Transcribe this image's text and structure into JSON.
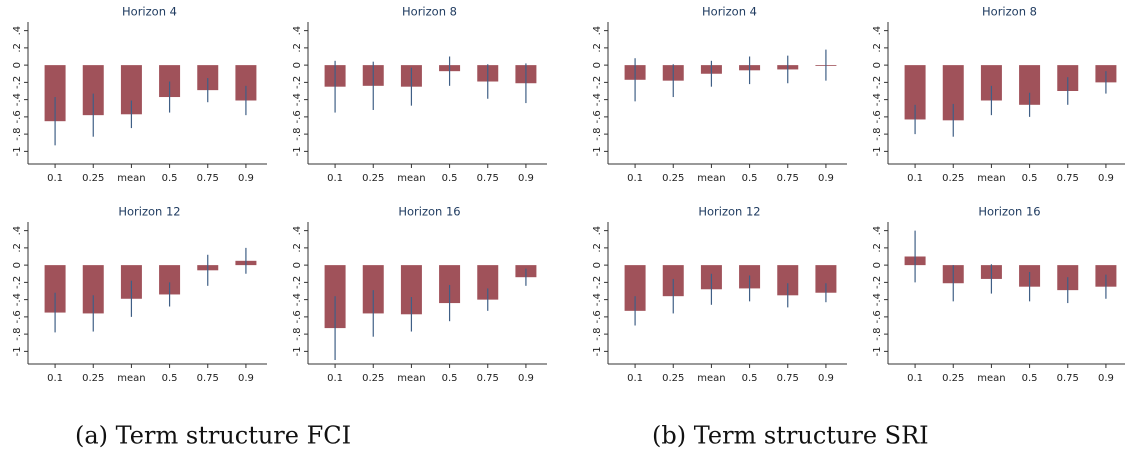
{
  "chart_data": [
    {
      "type": "bar",
      "title": "Horizon 4",
      "categories": [
        "0.1",
        "0.25",
        "mean",
        "0.5",
        "0.75",
        "0.9"
      ],
      "values": [
        -0.65,
        -0.58,
        -0.57,
        -0.37,
        -0.29,
        -0.41
      ],
      "errors": [
        0.28,
        0.25,
        0.16,
        0.18,
        0.14,
        0.17
      ],
      "color": "#a0525a",
      "error_color": "#3f5f86",
      "ylim": [
        -1.1,
        0.5
      ],
      "yticks": [
        {
          "value": 0.4,
          "label": ".4"
        },
        {
          "value": 0.2,
          "label": ".2"
        },
        0,
        {
          "value": -0.2,
          "label": "-.2"
        },
        {
          "value": -0.4,
          "label": "-.4"
        },
        {
          "value": -0.6,
          "label": "-.6"
        },
        {
          "value": -0.8,
          "label": "-.8"
        },
        -1
      ]
    },
    {
      "type": "bar",
      "title": "Horizon 8",
      "categories": [
        "0.1",
        "0.25",
        "mean",
        "0.5",
        "0.75",
        "0.9"
      ],
      "values": [
        -0.25,
        -0.24,
        -0.25,
        -0.07,
        -0.19,
        -0.21
      ],
      "errors": [
        0.3,
        0.28,
        0.22,
        0.17,
        0.2,
        0.23
      ],
      "color": "#a0525a",
      "error_color": "#3f5f86",
      "ylim": [
        -1.1,
        0.5
      ],
      "yticks": [
        {
          "value": 0.4,
          "label": ".4"
        },
        {
          "value": 0.2,
          "label": ".2"
        },
        0,
        {
          "value": -0.2,
          "label": "-.2"
        },
        {
          "value": -0.4,
          "label": "-.4"
        },
        {
          "value": -0.6,
          "label": "-.6"
        },
        {
          "value": -0.8,
          "label": "-.8"
        },
        -1
      ]
    },
    {
      "type": "bar",
      "title": "Horizon 4",
      "categories": [
        "0.1",
        "0.25",
        "mean",
        "0.5",
        "0.75",
        "0.9"
      ],
      "values": [
        -0.17,
        -0.18,
        -0.1,
        -0.06,
        -0.05,
        0
      ],
      "errors": [
        0.25,
        0.19,
        0.15,
        0.16,
        0.16,
        0.18
      ],
      "color": "#a0525a",
      "error_color": "#3f5f86",
      "ylim": [
        -1.1,
        0.5
      ],
      "yticks": [
        {
          "value": 0.4,
          "label": ".4"
        },
        {
          "value": 0.2,
          "label": ".2"
        },
        0,
        {
          "value": -0.2,
          "label": "-.2"
        },
        {
          "value": -0.4,
          "label": "-.4"
        },
        {
          "value": -0.6,
          "label": "-.6"
        },
        {
          "value": -0.8,
          "label": "-.8"
        },
        -1
      ]
    },
    {
      "type": "bar",
      "title": "Horizon 8",
      "categories": [
        "0.1",
        "0.25",
        "mean",
        "0.5",
        "0.75",
        "0.9"
      ],
      "values": [
        -0.63,
        -0.64,
        -0.41,
        -0.46,
        -0.3,
        -0.2
      ],
      "errors": [
        0.17,
        0.19,
        0.17,
        0.14,
        0.16,
        0.13
      ],
      "color": "#a0525a",
      "error_color": "#3f5f86",
      "ylim": [
        -1.1,
        0.5
      ],
      "yticks": [
        {
          "value": 0.4,
          "label": ".4"
        },
        {
          "value": 0.2,
          "label": ".2"
        },
        0,
        {
          "value": -0.2,
          "label": "-.2"
        },
        {
          "value": -0.4,
          "label": "-.4"
        },
        {
          "value": -0.6,
          "label": "-.6"
        },
        {
          "value": -0.8,
          "label": "-.8"
        },
        -1
      ]
    },
    {
      "type": "bar",
      "title": "Horizon 12",
      "categories": [
        "0.1",
        "0.25",
        "mean",
        "0.5",
        "0.75",
        "0.9"
      ],
      "values": [
        -0.55,
        -0.56,
        -0.39,
        -0.34,
        -0.06,
        0.05
      ],
      "errors": [
        0.23,
        0.21,
        0.21,
        0.14,
        0.18,
        0.15
      ],
      "color": "#a0525a",
      "error_color": "#3f5f86",
      "ylim": [
        -1.1,
        0.5
      ],
      "yticks": [
        {
          "value": 0.4,
          "label": ".4"
        },
        {
          "value": 0.2,
          "label": ".2"
        },
        0,
        {
          "value": -0.2,
          "label": "-.2"
        },
        {
          "value": -0.4,
          "label": "-.4"
        },
        {
          "value": -0.6,
          "label": "-.6"
        },
        {
          "value": -0.8,
          "label": "-.8"
        },
        -1
      ]
    },
    {
      "type": "bar",
      "title": "Horizon 16",
      "categories": [
        "0.1",
        "0.25",
        "mean",
        "0.5",
        "0.75",
        "0.9"
      ],
      "values": [
        -0.73,
        -0.56,
        -0.57,
        -0.44,
        -0.4,
        -0.14
      ],
      "errors": [
        0.37,
        0.27,
        0.2,
        0.21,
        0.13,
        0.1
      ],
      "color": "#a0525a",
      "error_color": "#3f5f86",
      "ylim": [
        -1.1,
        0.5
      ],
      "yticks": [
        {
          "value": 0.4,
          "label": ".4"
        },
        {
          "value": 0.2,
          "label": ".2"
        },
        0,
        {
          "value": -0.2,
          "label": "-.2"
        },
        {
          "value": -0.4,
          "label": "-.4"
        },
        {
          "value": -0.6,
          "label": "-.6"
        },
        {
          "value": -0.8,
          "label": "-.8"
        },
        -1
      ]
    },
    {
      "type": "bar",
      "title": "Horizon 12",
      "categories": [
        "0.1",
        "0.25",
        "mean",
        "0.5",
        "0.75",
        "0.9"
      ],
      "values": [
        -0.53,
        -0.36,
        -0.28,
        -0.27,
        -0.35,
        -0.32
      ],
      "errors": [
        0.17,
        0.2,
        0.18,
        0.15,
        0.14,
        0.11
      ],
      "color": "#a0525a",
      "error_color": "#3f5f86",
      "ylim": [
        -1.1,
        0.5
      ],
      "yticks": [
        {
          "value": 0.4,
          "label": ".4"
        },
        {
          "value": 0.2,
          "label": ".2"
        },
        0,
        {
          "value": -0.2,
          "label": "-.2"
        },
        {
          "value": -0.4,
          "label": "-.4"
        },
        {
          "value": -0.6,
          "label": "-.6"
        },
        {
          "value": -0.8,
          "label": "-.8"
        },
        -1
      ]
    },
    {
      "type": "bar",
      "title": "Horizon 16",
      "categories": [
        "0.1",
        "0.25",
        "mean",
        "0.5",
        "0.75",
        "0.9"
      ],
      "values": [
        0.1,
        -0.21,
        -0.16,
        -0.25,
        -0.29,
        -0.25
      ],
      "errors": [
        0.3,
        0.21,
        0.17,
        0.17,
        0.15,
        0.14
      ],
      "color": "#a0525a",
      "error_color": "#3f5f86",
      "ylim": [
        -1.1,
        0.5
      ],
      "yticks": [
        {
          "value": 0.4,
          "label": ".4"
        },
        {
          "value": 0.2,
          "label": ".2"
        },
        0,
        {
          "value": -0.2,
          "label": "-.2"
        },
        {
          "value": -0.4,
          "label": "-.4"
        },
        {
          "value": -0.6,
          "label": "-.6"
        },
        {
          "value": -0.8,
          "label": "-.8"
        },
        -1
      ]
    }
  ],
  "captions": [
    "(a) Term structure FCI",
    "(b) Term structure SRI"
  ]
}
